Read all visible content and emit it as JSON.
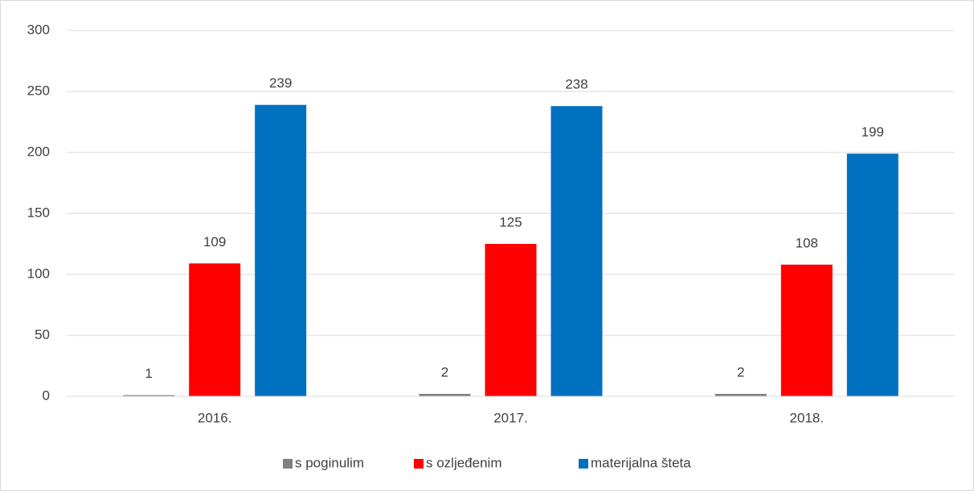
{
  "chart_data": {
    "type": "bar",
    "categories": [
      "2016.",
      "2017.",
      "2018."
    ],
    "series": [
      {
        "name": "s poginulim",
        "color": "#808080",
        "values": [
          1,
          2,
          2
        ]
      },
      {
        "name": "s ozljeđenim",
        "color": "#ff0000",
        "values": [
          109,
          125,
          108
        ]
      },
      {
        "name": "materijalna šteta",
        "color": "#0070c0",
        "values": [
          239,
          238,
          199
        ]
      }
    ],
    "ylim": [
      0,
      300
    ],
    "yticks": [
      0,
      50,
      100,
      150,
      200,
      250,
      300
    ],
    "grid": true,
    "legend": "bottom"
  }
}
